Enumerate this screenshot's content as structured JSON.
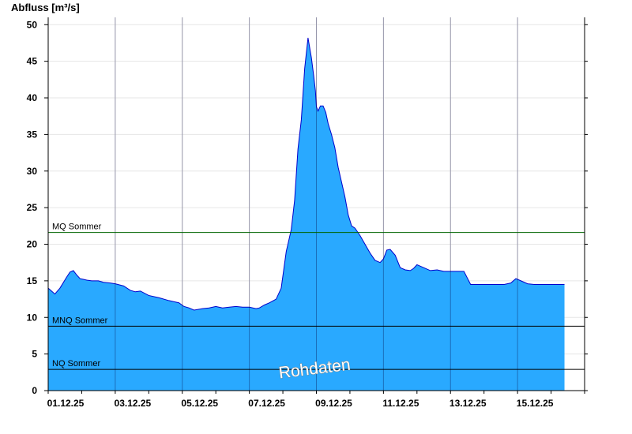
{
  "chart_data": {
    "type": "area",
    "ylabel": "Abfluss [m³/s]",
    "xlabel": "",
    "title": "",
    "ylim": [
      0,
      51
    ],
    "y_ticks": [
      0,
      5,
      10,
      15,
      20,
      25,
      30,
      35,
      40,
      45,
      50
    ],
    "x_range_days": [
      0,
      16
    ],
    "x_tick_labels": [
      "01.12.25",
      "03.12.25",
      "05.12.25",
      "07.12.25",
      "09.12.25",
      "11.12.25",
      "13.12.25",
      "15.12.25"
    ],
    "x_tick_days": [
      0,
      2,
      4,
      6,
      8,
      10,
      12,
      14
    ],
    "grid": true,
    "colors": {
      "fill": "#29a9ff",
      "line": "#0000cc",
      "mq": "#006400",
      "ref": "#000000"
    },
    "reference_lines": [
      {
        "label": "MQ Sommer",
        "value": 21.6
      },
      {
        "label": "MNQ Sommer",
        "value": 8.8
      },
      {
        "label": "NQ Sommer",
        "value": 2.9
      }
    ],
    "watermark": "Rohdaten",
    "series": [
      {
        "x": [
          0.0,
          0.2,
          0.35,
          0.55,
          0.65,
          0.75,
          0.85,
          0.95,
          1.05,
          1.15,
          1.3,
          1.5,
          1.65,
          1.85,
          2.0,
          2.25,
          2.45,
          2.6,
          2.75,
          3.0,
          3.3,
          3.6,
          3.9,
          4.05,
          4.2,
          4.35,
          4.6,
          4.8,
          5.0,
          5.2,
          5.4,
          5.6,
          5.8,
          6.0,
          6.2,
          6.3,
          6.45,
          6.6,
          6.8,
          6.95,
          7.1,
          7.25,
          7.35,
          7.45,
          7.55,
          7.65,
          7.75,
          7.85,
          7.92,
          7.97,
          8.0,
          8.05,
          8.12,
          8.2,
          8.28,
          8.35,
          8.45,
          8.55,
          8.65,
          8.75,
          8.85,
          8.95,
          9.05,
          9.15,
          9.3,
          9.45,
          9.6,
          9.75,
          9.9,
          10.0,
          10.1,
          10.2,
          10.35,
          10.5,
          10.65,
          10.8,
          10.9,
          11.0,
          11.2,
          11.4,
          11.6,
          11.8,
          12.0,
          12.2,
          12.4,
          12.6,
          12.8,
          13.0,
          13.2,
          13.4,
          13.6,
          13.8,
          13.95,
          14.1,
          14.3,
          14.5,
          15.0,
          15.4
        ],
        "values": [
          14.0,
          13.2,
          14.0,
          15.5,
          16.2,
          16.4,
          15.8,
          15.3,
          15.2,
          15.1,
          15.0,
          15.0,
          14.8,
          14.7,
          14.6,
          14.3,
          13.7,
          13.5,
          13.6,
          13.0,
          12.7,
          12.3,
          12.0,
          11.5,
          11.3,
          11.0,
          11.2,
          11.3,
          11.5,
          11.3,
          11.4,
          11.5,
          11.4,
          11.4,
          11.2,
          11.3,
          11.7,
          12.0,
          12.5,
          14.0,
          19.0,
          22.0,
          26.0,
          33.0,
          37.0,
          44.0,
          48.2,
          45.5,
          43.0,
          41.0,
          38.8,
          38.2,
          38.9,
          38.9,
          38.0,
          36.5,
          35.0,
          33.2,
          30.5,
          28.5,
          26.5,
          24.0,
          22.5,
          22.2,
          21.2,
          20.0,
          18.8,
          17.8,
          17.5,
          18.0,
          19.2,
          19.3,
          18.5,
          16.8,
          16.5,
          16.4,
          16.7,
          17.2,
          16.8,
          16.4,
          16.5,
          16.3,
          16.3,
          16.3,
          16.3,
          14.5,
          14.5,
          14.5,
          14.5,
          14.5,
          14.5,
          14.7,
          15.3,
          15.0,
          14.6,
          14.5,
          14.5,
          14.5
        ]
      }
    ]
  }
}
